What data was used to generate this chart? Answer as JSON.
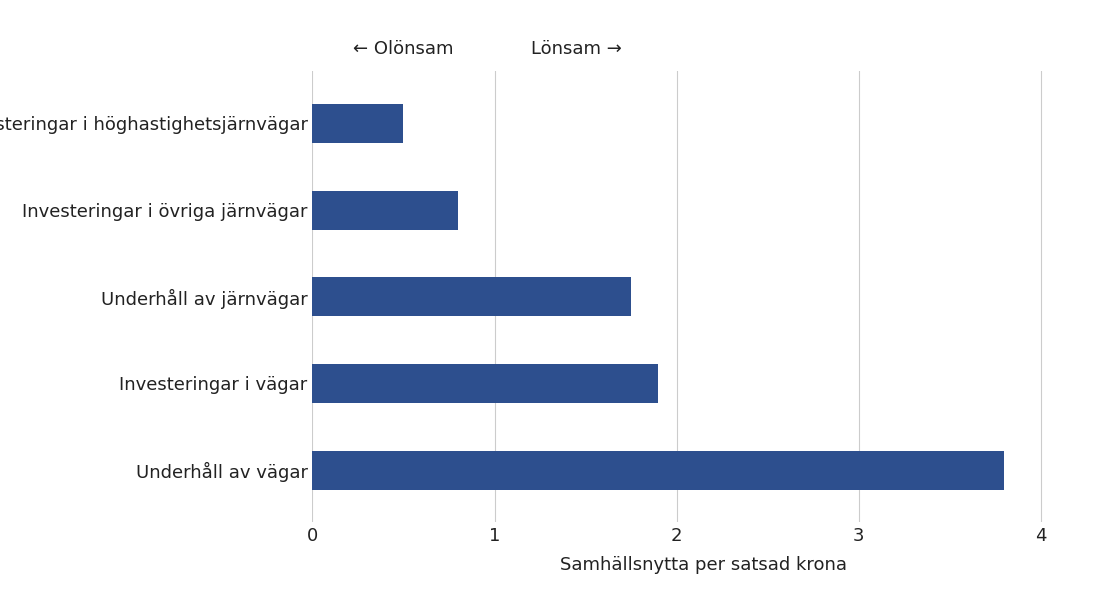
{
  "categories": [
    "Underhåll av vägar",
    "Investeringar i vägar",
    "Underhåll av järnvägar",
    "Investeringar i övriga järnvägar",
    "Investeringar i höghastighetsjärnvägar"
  ],
  "values": [
    3.8,
    1.9,
    1.75,
    0.8,
    0.5
  ],
  "bar_color": "#2d4f8e",
  "xlabel": "Samhällsnytta per satsad krona",
  "xlim": [
    0,
    4.3
  ],
  "xticks": [
    0,
    1,
    2,
    3,
    4
  ],
  "annotation_left": "← Olönsam",
  "annotation_right": "Lönsam →",
  "grid_color": "#cccccc",
  "background_color": "#ffffff",
  "bar_height": 0.45,
  "label_fontsize": 13,
  "tick_fontsize": 13,
  "xlabel_fontsize": 13,
  "annotation_fontsize": 13
}
